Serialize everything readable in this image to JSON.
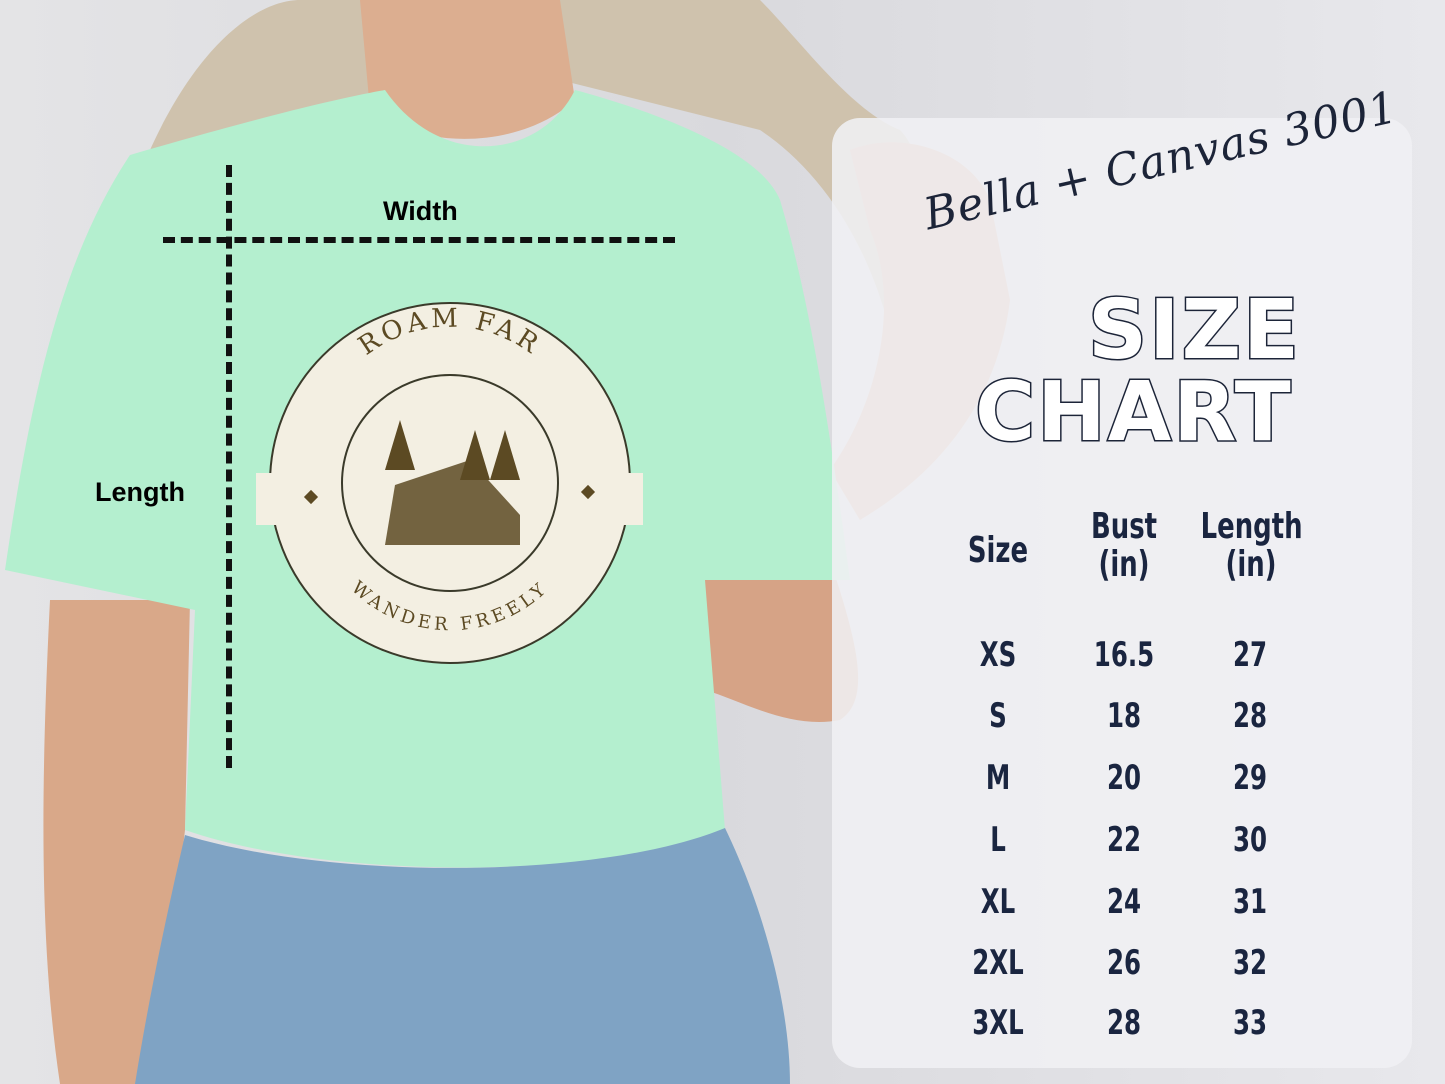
{
  "measurements": {
    "width_label": "Width",
    "length_label": "Length"
  },
  "shirt": {
    "color": "#b4efcf",
    "logo": {
      "top_text": "ROAM FAR",
      "bottom_text": "WANDER FREELY",
      "ink_color": "#5c4a23"
    }
  },
  "panel": {
    "brand": "Bella + Canvas 3001",
    "title_line1": "SIZE",
    "title_line2": "CHART",
    "text_color": "#1c2438"
  },
  "table": {
    "headers": [
      {
        "line1": "Size",
        "line2": ""
      },
      {
        "line1": "Bust",
        "line2": "(in)"
      },
      {
        "line1": "Length",
        "line2": "(in)"
      }
    ],
    "rows": [
      {
        "size": "XS",
        "bust": "16.5",
        "length": "27"
      },
      {
        "size": "S",
        "bust": "18",
        "length": "28"
      },
      {
        "size": "M",
        "bust": "20",
        "length": "29"
      },
      {
        "size": "L",
        "bust": "22",
        "length": "30"
      },
      {
        "size": "XL",
        "bust": "24",
        "length": "31"
      },
      {
        "size": "2XL",
        "bust": "26",
        "length": "32"
      },
      {
        "size": "3XL",
        "bust": "28",
        "length": "33"
      }
    ]
  }
}
